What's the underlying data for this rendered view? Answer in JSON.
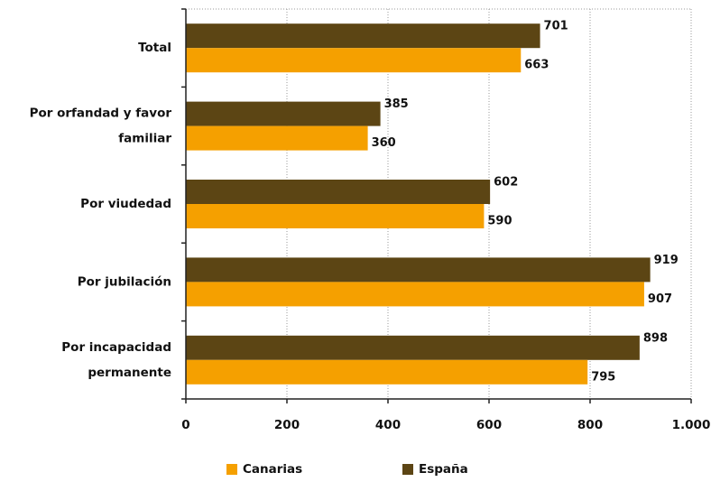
{
  "chart_data": {
    "type": "bar",
    "orientation": "horizontal",
    "categories": [
      "Total",
      "Por orfandad y favor familiar",
      "Por viudedad",
      "Por jubilación",
      "Por incapacidad permanente"
    ],
    "category_lines": [
      [
        "Total"
      ],
      [
        "Por orfandad y favor",
        "familiar"
      ],
      [
        "Por viudedad"
      ],
      [
        "Por jubilación"
      ],
      [
        "Por incapacidad",
        "permanente"
      ]
    ],
    "series": [
      {
        "name": "Canarias",
        "color": "#F5A000",
        "values": [
          663,
          360,
          590,
          907,
          795
        ]
      },
      {
        "name": "España",
        "color": "#5C4514",
        "values": [
          701,
          385,
          602,
          919,
          898
        ]
      }
    ],
    "xlim": [
      0,
      1000
    ],
    "xticks": [
      0,
      200,
      400,
      600,
      800,
      1000
    ],
    "xtick_labels": [
      "0",
      "200",
      "400",
      "600",
      "800",
      "1.000"
    ],
    "grid": "vertical-dotted",
    "legend_position": "bottom"
  }
}
